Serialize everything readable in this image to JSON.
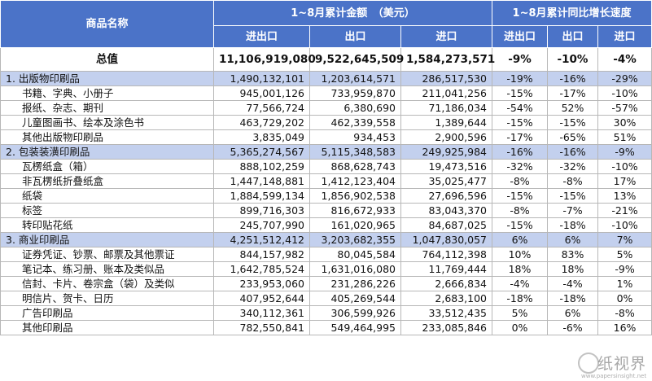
{
  "header": {
    "name_col": "商品名称",
    "amount_group": "1~8月累计金额　（美元）",
    "growth_group": "1~8月累计同比增长速度",
    "sub_cols": [
      "进出口",
      "出口",
      "进口",
      "进出口",
      "出口",
      "进口"
    ]
  },
  "rows": [
    {
      "type": "total",
      "name": "总值",
      "v": [
        "11,106,919,080",
        "9,522,645,509",
        "1,584,273,571",
        "-9%",
        "-10%",
        "-4%"
      ]
    },
    {
      "type": "cat",
      "name": "1. 出版物印刷品",
      "v": [
        "1,490,132,101",
        "1,203,614,571",
        "286,517,530",
        "-19%",
        "-16%",
        "-29%"
      ]
    },
    {
      "type": "sub",
      "name": "书籍、字典、小册子",
      "v": [
        "945,001,126",
        "733,959,870",
        "211,041,256",
        "-15%",
        "-17%",
        "-10%"
      ]
    },
    {
      "type": "sub",
      "name": "报纸、杂志、期刊",
      "v": [
        "77,566,724",
        "6,380,690",
        "71,186,034",
        "-54%",
        "52%",
        "-57%"
      ]
    },
    {
      "type": "sub",
      "name": "儿童图画书、绘本及涂色书",
      "v": [
        "463,729,202",
        "462,339,558",
        "1,389,644",
        "-15%",
        "-15%",
        "30%"
      ]
    },
    {
      "type": "sub",
      "name": "其他出版物印刷品",
      "v": [
        "3,835,049",
        "934,453",
        "2,900,596",
        "-17%",
        "-65%",
        "51%"
      ]
    },
    {
      "type": "cat",
      "name": "2. 包装装潢印刷品",
      "v": [
        "5,365,274,567",
        "5,115,348,583",
        "249,925,984",
        "-16%",
        "-16%",
        "-9%"
      ]
    },
    {
      "type": "sub",
      "name": "瓦楞纸盒（箱）",
      "v": [
        "888,102,259",
        "868,628,743",
        "19,473,516",
        "-32%",
        "-32%",
        "-10%"
      ]
    },
    {
      "type": "sub",
      "name": "非瓦楞纸折叠纸盒",
      "v": [
        "1,447,148,881",
        "1,412,123,404",
        "35,025,477",
        "-8%",
        "-8%",
        "17%"
      ]
    },
    {
      "type": "sub",
      "name": "纸袋",
      "v": [
        "1,884,599,134",
        "1,856,902,538",
        "27,696,596",
        "-15%",
        "-15%",
        "13%"
      ]
    },
    {
      "type": "sub",
      "name": "标签",
      "v": [
        "899,716,303",
        "816,672,933",
        "83,043,370",
        "-8%",
        "-7%",
        "-21%"
      ]
    },
    {
      "type": "sub",
      "name": "转印贴花纸",
      "v": [
        "245,707,990",
        "161,020,965",
        "84,687,025",
        "-15%",
        "-18%",
        "-10%"
      ]
    },
    {
      "type": "cat",
      "name": "3. 商业印刷品",
      "v": [
        "4,251,512,412",
        "3,203,682,355",
        "1,047,830,057",
        "6%",
        "6%",
        "7%"
      ]
    },
    {
      "type": "sub",
      "name": "证券凭证、钞票、邮票及其他票证",
      "v": [
        "844,157,982",
        "80,045,584",
        "764,112,398",
        "10%",
        "83%",
        "5%"
      ]
    },
    {
      "type": "sub",
      "name": "笔记本、练习册、账本及类似品",
      "v": [
        "1,642,785,524",
        "1,631,016,080",
        "11,769,444",
        "18%",
        "18%",
        "-9%"
      ]
    },
    {
      "type": "sub",
      "name": "信封、卡片、卷宗盒（袋）及类似",
      "v": [
        "233,953,060",
        "231,286,226",
        "2,666,834",
        "-4%",
        "-4%",
        "1%"
      ]
    },
    {
      "type": "sub",
      "name": "明信片、贺卡、日历",
      "v": [
        "407,952,644",
        "405,269,544",
        "2,683,100",
        "-18%",
        "-18%",
        "0%"
      ]
    },
    {
      "type": "sub",
      "name": "广告印刷品",
      "v": [
        "340,112,361",
        "306,599,926",
        "33,512,435",
        "5%",
        "6%",
        "-8%"
      ]
    },
    {
      "type": "sub",
      "name": "其他印刷品",
      "v": [
        "782,550,841",
        "549,464,995",
        "233,085,846",
        "0%",
        "-6%",
        "16%"
      ]
    }
  ],
  "watermark": {
    "text": "纸视界",
    "url": "www.papersinsight.net"
  }
}
